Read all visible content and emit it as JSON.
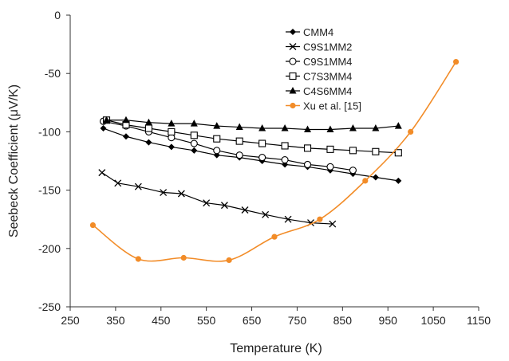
{
  "chart_data": {
    "type": "line",
    "title": "",
    "xlabel": "Temperature (K)",
    "ylabel": "Seebeck Coefficient (μV/K)",
    "xlim": [
      250,
      1150
    ],
    "ylim": [
      -250,
      0
    ],
    "xticks": [
      250,
      350,
      450,
      550,
      650,
      750,
      850,
      950,
      1050,
      1150
    ],
    "yticks": [
      0,
      -50,
      -100,
      -150,
      -200,
      -250
    ],
    "grid": false,
    "legend_position": "top-right",
    "series": [
      {
        "name": "CMM4",
        "marker": "diamond-filled",
        "color": "#000000",
        "smooth": false,
        "x": [
          323,
          373,
          423,
          473,
          523,
          573,
          623,
          673,
          723,
          773,
          823,
          873,
          923,
          973
        ],
        "y": [
          -97,
          -104,
          -109,
          -113,
          -116,
          -120,
          -122,
          -125,
          -128,
          -130,
          -133,
          -136,
          -139,
          -142
        ]
      },
      {
        "name": "C9S1MM2",
        "marker": "x",
        "color": "#000000",
        "smooth": false,
        "x": [
          320,
          355,
          400,
          455,
          495,
          550,
          590,
          635,
          680,
          730,
          780,
          828
        ],
        "y": [
          -135,
          -144,
          -147,
          -152,
          -153,
          -161,
          -163,
          -167,
          -171,
          -175,
          -178,
          -179
        ]
      },
      {
        "name": "C9S1MM4",
        "marker": "circle-open",
        "color": "#000000",
        "smooth": false,
        "x": [
          323,
          373,
          423,
          473,
          523,
          573,
          623,
          673,
          723,
          773,
          823,
          873
        ],
        "y": [
          -91,
          -95,
          -100,
          -105,
          -110,
          -116,
          -120,
          -122,
          -124,
          -128,
          -130,
          -133
        ]
      },
      {
        "name": "C7S3MM4",
        "marker": "square-open",
        "color": "#000000",
        "smooth": false,
        "x": [
          330,
          373,
          423,
          473,
          523,
          573,
          623,
          673,
          723,
          773,
          823,
          873,
          923,
          973
        ],
        "y": [
          -90,
          -94,
          -97,
          -100,
          -103,
          -106,
          -108,
          -110,
          -112,
          -114,
          -115,
          -116,
          -117,
          -118
        ]
      },
      {
        "name": "C4S6MM4",
        "marker": "triangle-filled",
        "color": "#000000",
        "smooth": false,
        "x": [
          330,
          373,
          423,
          473,
          523,
          573,
          623,
          673,
          723,
          773,
          823,
          873,
          923,
          973
        ],
        "y": [
          -90,
          -90,
          -92,
          -93,
          -93,
          -95,
          -96,
          -97,
          -97,
          -98,
          -98,
          -97,
          -97,
          -95
        ]
      },
      {
        "name": "Xu et al. [15]",
        "marker": "circle-filled",
        "color": "#f28c28",
        "smooth": true,
        "x": [
          300,
          400,
          500,
          600,
          700,
          800,
          900,
          1000,
          1100
        ],
        "y": [
          -180,
          -209,
          -208,
          -210,
          -190,
          -175,
          -142,
          -100,
          -40
        ]
      }
    ]
  }
}
